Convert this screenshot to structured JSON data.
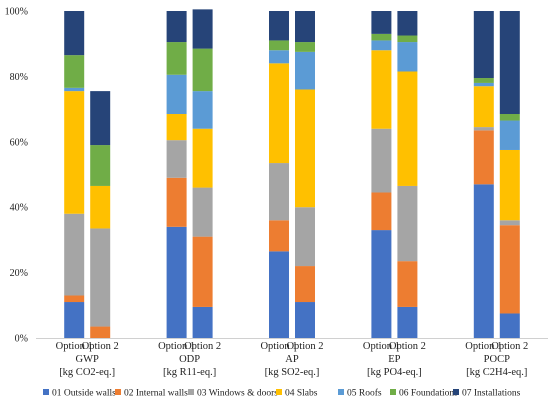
{
  "chart_data": {
    "type": "bar",
    "stacked": true,
    "title": "",
    "xlabel": "",
    "ylabel": "",
    "ylim": [
      0,
      100
    ],
    "yticks": [
      "0%",
      "20%",
      "40%",
      "60%",
      "80%",
      "100%"
    ],
    "grid": false,
    "legend_position": "bottom",
    "groups": [
      {
        "name": "GWP",
        "unit": "[kg CO2-eq.]"
      },
      {
        "name": "ODP",
        "unit": "[kg R11-eq.]"
      },
      {
        "name": "AP",
        "unit": "[kg SO2-eq.]"
      },
      {
        "name": "EP",
        "unit": "[kg PO4-eq.]"
      },
      {
        "name": "POCP",
        "unit": "[kg C2H4-eq.]"
      }
    ],
    "bar_labels": [
      "Option 1",
      "Option 2"
    ],
    "series": [
      {
        "name": "01 Outside walls",
        "color": "#4472C4",
        "values": [
          [
            11,
            0
          ],
          [
            34,
            9.5
          ],
          [
            26.5,
            11
          ],
          [
            33,
            9.5
          ],
          [
            47,
            7.5
          ]
        ]
      },
      {
        "name": "02 Internal walls",
        "color": "#ED7D31",
        "values": [
          [
            2,
            3.5
          ],
          [
            15,
            21.5
          ],
          [
            9.5,
            11
          ],
          [
            11.5,
            14
          ],
          [
            16.5,
            27
          ]
        ]
      },
      {
        "name": "03 Windows & doors",
        "color": "#A5A5A5",
        "values": [
          [
            25,
            30
          ],
          [
            11.5,
            15
          ],
          [
            17.5,
            18
          ],
          [
            19.5,
            23
          ],
          [
            1,
            1.5
          ]
        ]
      },
      {
        "name": "04 Slabs",
        "color": "#FFC000",
        "values": [
          [
            37.5,
            13
          ],
          [
            8,
            18
          ],
          [
            30.5,
            36
          ],
          [
            24,
            35
          ],
          [
            12.5,
            21.5
          ]
        ]
      },
      {
        "name": "05 Roofs",
        "color": "#5B9BD5",
        "values": [
          [
            1,
            0
          ],
          [
            12,
            11.5
          ],
          [
            4,
            11.5
          ],
          [
            3,
            9
          ],
          [
            1,
            9
          ]
        ]
      },
      {
        "name": "06 Foundations",
        "color": "#70AD47",
        "values": [
          [
            10,
            12.5
          ],
          [
            10,
            13
          ],
          [
            3,
            3
          ],
          [
            2,
            2
          ],
          [
            1.5,
            2
          ]
        ]
      },
      {
        "name": "07 Installations",
        "color": "#264478",
        "values": [
          [
            13.5,
            16.5
          ],
          [
            9.5,
            12
          ],
          [
            9,
            9.5
          ],
          [
            7,
            7.5
          ],
          [
            20.5,
            31.5
          ]
        ]
      }
    ]
  }
}
